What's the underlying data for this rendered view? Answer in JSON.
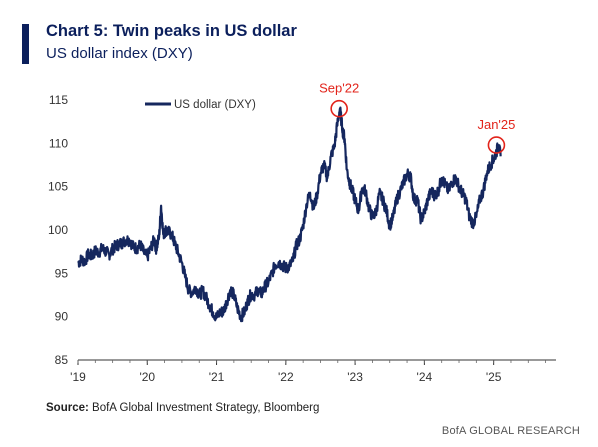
{
  "header": {
    "title": "Chart 5: Twin peaks in US dollar",
    "subtitle": "US dollar index (DXY)"
  },
  "footer": {
    "source_label": "Source:",
    "source_text": "BofA Global Investment Strategy, Bloomberg",
    "brand": "BofA GLOBAL RESEARCH"
  },
  "colors": {
    "series": "#15275e",
    "annotation": "#e2231a",
    "accent": "#0b1f5c"
  },
  "chart_data": {
    "type": "line",
    "legend": {
      "position": "top-left",
      "entries": [
        "US dollar (DXY)"
      ]
    },
    "xlabel": "",
    "ylabel": "",
    "xlim": [
      2019.0,
      2025.9
    ],
    "ylim": [
      85,
      115
    ],
    "yticks": [
      85,
      90,
      95,
      100,
      105,
      110,
      115
    ],
    "xticks": [
      {
        "value": 2019,
        "label": "'19"
      },
      {
        "value": 2020,
        "label": "'20"
      },
      {
        "value": 2021,
        "label": "'21"
      },
      {
        "value": 2022,
        "label": "'22"
      },
      {
        "value": 2023,
        "label": "'23"
      },
      {
        "value": 2024,
        "label": "'24"
      },
      {
        "value": 2025,
        "label": "'25"
      }
    ],
    "grid": false,
    "series": [
      {
        "name": "US dollar (DXY)",
        "x": [
          2019.0,
          2019.05,
          2019.1,
          2019.15,
          2019.2,
          2019.25,
          2019.3,
          2019.35,
          2019.4,
          2019.45,
          2019.5,
          2019.55,
          2019.6,
          2019.65,
          2019.7,
          2019.75,
          2019.8,
          2019.85,
          2019.9,
          2019.95,
          2020.0,
          2020.05,
          2020.1,
          2020.13,
          2020.17,
          2020.2,
          2020.23,
          2020.27,
          2020.3,
          2020.35,
          2020.4,
          2020.45,
          2020.5,
          2020.55,
          2020.6,
          2020.65,
          2020.7,
          2020.75,
          2020.8,
          2020.85,
          2020.9,
          2020.95,
          2021.0,
          2021.05,
          2021.1,
          2021.15,
          2021.2,
          2021.25,
          2021.3,
          2021.35,
          2021.4,
          2021.45,
          2021.5,
          2021.55,
          2021.6,
          2021.65,
          2021.7,
          2021.75,
          2021.8,
          2021.85,
          2021.9,
          2021.95,
          2022.0,
          2022.05,
          2022.1,
          2022.15,
          2022.2,
          2022.25,
          2022.3,
          2022.35,
          2022.4,
          2022.45,
          2022.5,
          2022.55,
          2022.6,
          2022.65,
          2022.7,
          2022.74,
          2022.78,
          2022.82,
          2022.85,
          2022.88,
          2022.92,
          2022.96,
          2023.0,
          2023.05,
          2023.1,
          2023.15,
          2023.2,
          2023.25,
          2023.3,
          2023.35,
          2023.4,
          2023.45,
          2023.5,
          2023.55,
          2023.6,
          2023.65,
          2023.7,
          2023.75,
          2023.8,
          2023.85,
          2023.9,
          2023.95,
          2024.0,
          2024.05,
          2024.1,
          2024.15,
          2024.2,
          2024.25,
          2024.3,
          2024.35,
          2024.4,
          2024.45,
          2024.5,
          2024.55,
          2024.6,
          2024.65,
          2024.7,
          2024.75,
          2024.8,
          2024.85,
          2024.9,
          2024.95,
          2025.0,
          2025.04,
          2025.07,
          2025.1
        ],
        "values": [
          96.2,
          96.6,
          96.4,
          97.2,
          97.0,
          97.6,
          97.4,
          97.9,
          97.5,
          97.2,
          97.8,
          98.2,
          98.4,
          98.6,
          98.9,
          98.8,
          98.0,
          97.9,
          98.3,
          97.4,
          96.9,
          97.9,
          98.9,
          97.8,
          99.2,
          102.8,
          99.5,
          100.0,
          99.8,
          99.5,
          98.4,
          97.3,
          96.2,
          94.5,
          93.0,
          92.8,
          93.4,
          92.5,
          93.0,
          92.2,
          91.3,
          90.5,
          89.9,
          90.5,
          90.6,
          91.8,
          93.1,
          92.5,
          91.0,
          90.0,
          90.5,
          91.8,
          92.6,
          92.5,
          93.1,
          92.6,
          93.5,
          94.0,
          95.0,
          96.0,
          96.3,
          95.9,
          95.6,
          95.8,
          96.4,
          98.2,
          98.9,
          100.5,
          103.0,
          104.3,
          102.5,
          104.0,
          106.5,
          107.5,
          106.0,
          108.5,
          109.6,
          112.0,
          114.0,
          111.5,
          110.5,
          107.0,
          105.5,
          104.5,
          103.5,
          102.2,
          104.8,
          104.5,
          102.5,
          101.5,
          102.0,
          104.2,
          103.5,
          102.3,
          100.5,
          101.5,
          103.5,
          104.5,
          105.5,
          106.5,
          106.2,
          103.5,
          103.5,
          101.2,
          102.0,
          103.5,
          104.5,
          104.0,
          104.5,
          106.0,
          105.2,
          104.5,
          105.5,
          106.0,
          105.0,
          104.2,
          103.5,
          101.5,
          100.8,
          101.5,
          103.5,
          104.5,
          106.5,
          107.5,
          108.2,
          109.0,
          109.8,
          108.5
        ]
      }
    ],
    "annotations": [
      {
        "label": "Sep'22",
        "x": 2022.77,
        "y": 114.0
      },
      {
        "label": "Jan'25",
        "x": 2025.04,
        "y": 109.8
      }
    ]
  }
}
